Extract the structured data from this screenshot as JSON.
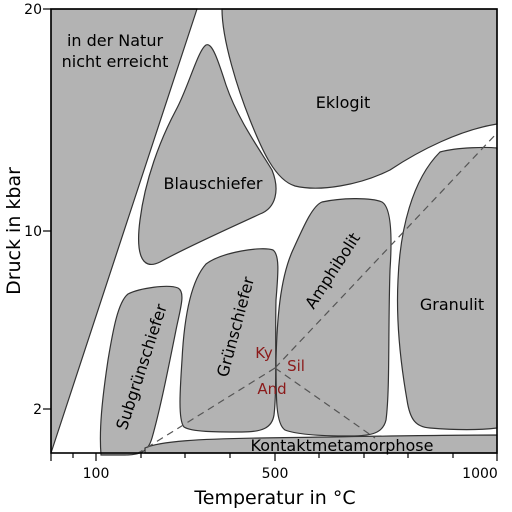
{
  "axes": {
    "x_title": "Temperatur in °C",
    "y_title": "Druck in kbar",
    "x_ticks": [
      "100",
      "500",
      "1000"
    ],
    "y_ticks": [
      "20",
      "10",
      "2"
    ]
  },
  "facies": {
    "not_reached_line1": "in der Natur",
    "not_reached_line2": "nicht erreicht",
    "eclogite": "Eklogit",
    "blueschist": "Blauschiefer",
    "amphibolite": "Amphibolit",
    "greenschist": "Grünschiefer",
    "subgreenschist": "Subgrünschiefer",
    "granulite": "Granulit",
    "contact": "Kontaktmetamorphose"
  },
  "minerals": {
    "kyanite": "Ky",
    "sillimanite": "Sil",
    "andalusite": "And"
  },
  "colors": {
    "facies_fill": "#b3b3b3",
    "mineral_text": "#8b1a1a"
  }
}
